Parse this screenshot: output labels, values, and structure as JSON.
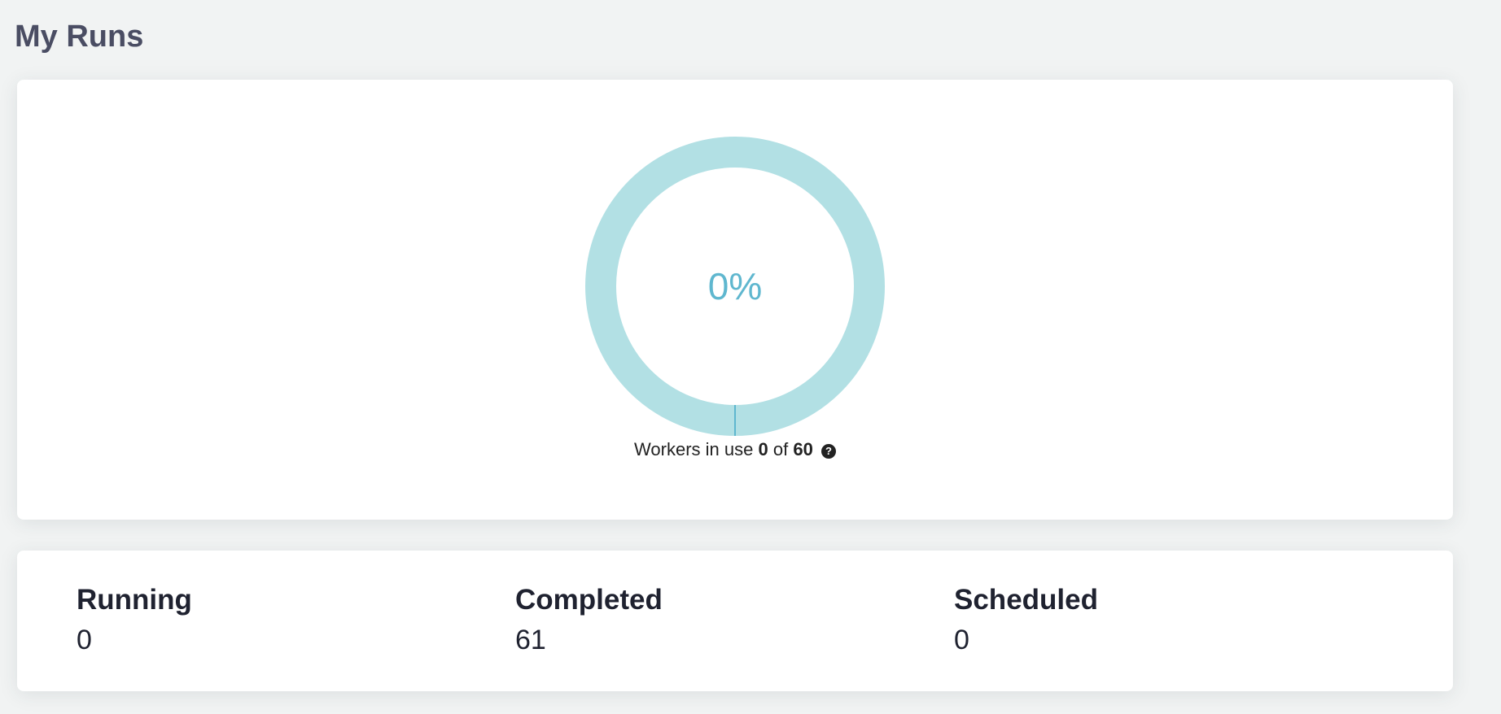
{
  "page": {
    "title": "My Runs"
  },
  "usage": {
    "percent_label": "0%",
    "percent_value": 0,
    "workers_prefix": "Workers in use",
    "workers_in_use": "0",
    "workers_of": "of",
    "workers_total": "60",
    "help_icon": "question-circle-icon",
    "help_glyph": "?",
    "colors": {
      "track": "#b2e0e4",
      "fill": "#5fb7cf",
      "label": "#5fb7cf"
    }
  },
  "stats": [
    {
      "label": "Running",
      "value": "0"
    },
    {
      "label": "Completed",
      "value": "61"
    },
    {
      "label": "Scheduled",
      "value": "0"
    }
  ]
}
